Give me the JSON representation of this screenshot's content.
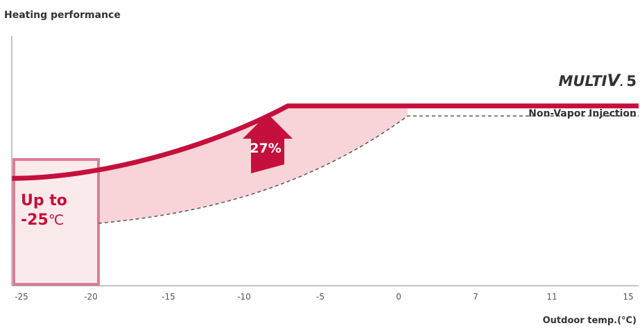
{
  "chart_data": {
    "type": "line",
    "ylabel": "Heating performance",
    "xlabel": "Outdoor temp.(°C)",
    "categories": [
      "-25",
      "-20",
      "-15",
      "-10",
      "-5",
      "0",
      "7",
      "11",
      "15"
    ],
    "series": [
      {
        "name": "MULTI V 5",
        "style": "solid",
        "color": "#c50f3c",
        "values": [
          0.43,
          0.45,
          0.5,
          0.6,
          0.72,
          0.72,
          0.72,
          0.72,
          0.72
        ]
      },
      {
        "name": "Non-Vapor Injection",
        "style": "dashed",
        "color": "#555555",
        "values": [
          null,
          0.25,
          0.29,
          0.37,
          0.52,
          0.68,
          0.68,
          0.68,
          0.68
        ]
      }
    ],
    "brand_text": {
      "main": "MULTI",
      "v": "V",
      "sub": ".",
      "num": "5"
    },
    "improvement_label": "27%",
    "range_annotation": {
      "line1": "Up to",
      "line2": "-25",
      "unit": "℃"
    },
    "colors": {
      "accent": "#c50f3c",
      "fill": "#f8d4d8",
      "box_fill": "#fbeaec",
      "box_border": "#e07c95",
      "axis": "#888888"
    }
  }
}
